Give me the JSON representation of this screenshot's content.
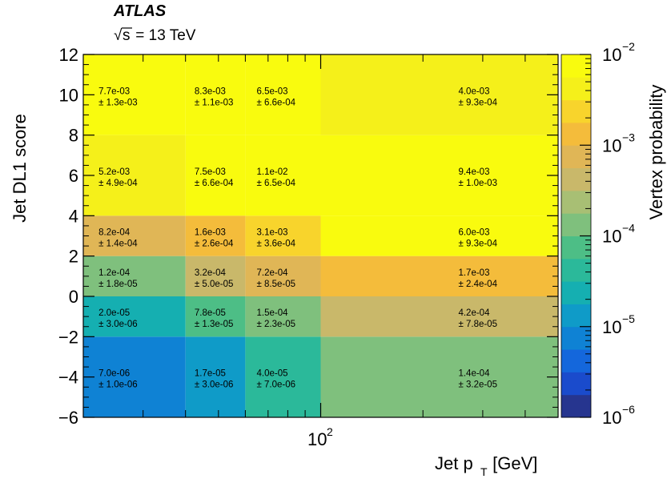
{
  "chart_data": {
    "type": "heatmap",
    "title": "ATLAS",
    "subtitle_root": "s",
    "subtitle_rest": " = 13 TeV",
    "xlabel_main": "Jet p",
    "xlabel_sub": "T",
    "xlabel_unit": " [GeV]",
    "ylabel": "Jet DL1 score",
    "zlabel": "Vertex probability",
    "x_scale": "log",
    "xlim": [
      20,
      500
    ],
    "x_edges": [
      20,
      40,
      60,
      100,
      500
    ],
    "ylim": [
      -6,
      12
    ],
    "y_edges": [
      -6,
      -2,
      0,
      2,
      4,
      8,
      12
    ],
    "zlim": [
      1e-06,
      0.01
    ],
    "z_scale": "log",
    "x_tick_base": "10",
    "x_tick_exp": "2",
    "y_ticks": [
      "12",
      "10",
      "8",
      "6",
      "4",
      "2",
      "0",
      "−2",
      "−4",
      "−6"
    ],
    "y_tick_values": [
      12,
      10,
      8,
      6,
      4,
      2,
      0,
      -2,
      -4,
      -6
    ],
    "z_tick_base": "10",
    "z_tick_exps": [
      "−2",
      "−3",
      "−4",
      "−5",
      "−6"
    ],
    "z_tick_values": [
      -2,
      -3,
      -4,
      -5,
      -6
    ],
    "cells": [
      [
        {
          "value": 7e-06,
          "label": "7.0e-06",
          "error": "± 1.0e-06"
        },
        {
          "value": 1.7e-05,
          "label": "1.7e-05",
          "error": "± 3.0e-06"
        },
        {
          "value": 4e-05,
          "label": "4.0e-05",
          "error": "± 7.0e-06"
        },
        {
          "value": 0.00014,
          "label": "1.4e-04",
          "error": "± 3.2e-05"
        }
      ],
      [
        {
          "value": 2e-05,
          "label": "2.0e-05",
          "error": "± 3.0e-06"
        },
        {
          "value": 7.8e-05,
          "label": "7.8e-05",
          "error": "± 1.3e-05"
        },
        {
          "value": 0.00015,
          "label": "1.5e-04",
          "error": "± 2.3e-05"
        },
        {
          "value": 0.00042,
          "label": "4.2e-04",
          "error": "± 7.8e-05"
        }
      ],
      [
        {
          "value": 0.00012,
          "label": "1.2e-04",
          "error": "± 1.8e-05"
        },
        {
          "value": 0.00032,
          "label": "3.2e-04",
          "error": "± 5.0e-05"
        },
        {
          "value": 0.00072,
          "label": "7.2e-04",
          "error": "± 8.5e-05"
        },
        {
          "value": 0.0017,
          "label": "1.7e-03",
          "error": "± 2.4e-04"
        }
      ],
      [
        {
          "value": 0.00082,
          "label": "8.2e-04",
          "error": "± 1.4e-04"
        },
        {
          "value": 0.0016,
          "label": "1.6e-03",
          "error": "± 2.6e-04"
        },
        {
          "value": 0.0031,
          "label": "3.1e-03",
          "error": "± 3.6e-04"
        },
        {
          "value": 0.006,
          "label": "6.0e-03",
          "error": "± 9.3e-04"
        }
      ],
      [
        {
          "value": 0.0052,
          "label": "5.2e-03",
          "error": "± 4.9e-04"
        },
        {
          "value": 0.0075,
          "label": "7.5e-03",
          "error": "± 6.6e-04"
        },
        {
          "value": 0.011,
          "label": "1.1e-02",
          "error": "± 6.5e-04"
        },
        {
          "value": 0.0094,
          "label": "9.4e-03",
          "error": "± 1.0e-03"
        }
      ],
      [
        {
          "value": 0.0077,
          "label": "7.7e-03",
          "error": "± 1.3e-03"
        },
        {
          "value": 0.0083,
          "label": "8.3e-03",
          "error": "± 1.1e-03"
        },
        {
          "value": 0.0065,
          "label": "6.5e-03",
          "error": "± 6.6e-04"
        },
        {
          "value": 0.004,
          "label": "4.0e-03",
          "error": "± 9.3e-04"
        }
      ]
    ],
    "palette": [
      "#26358f",
      "#1a4bcc",
      "#1467dc",
      "#0f82d4",
      "#0f9bc8",
      "#15afb1",
      "#2bb99a",
      "#4dbe86",
      "#7fc07d",
      "#a8bf74",
      "#c9b86a",
      "#e0b656",
      "#f4bc3b",
      "#f8d42c",
      "#f5f01a",
      "#f9fb0e"
    ]
  }
}
